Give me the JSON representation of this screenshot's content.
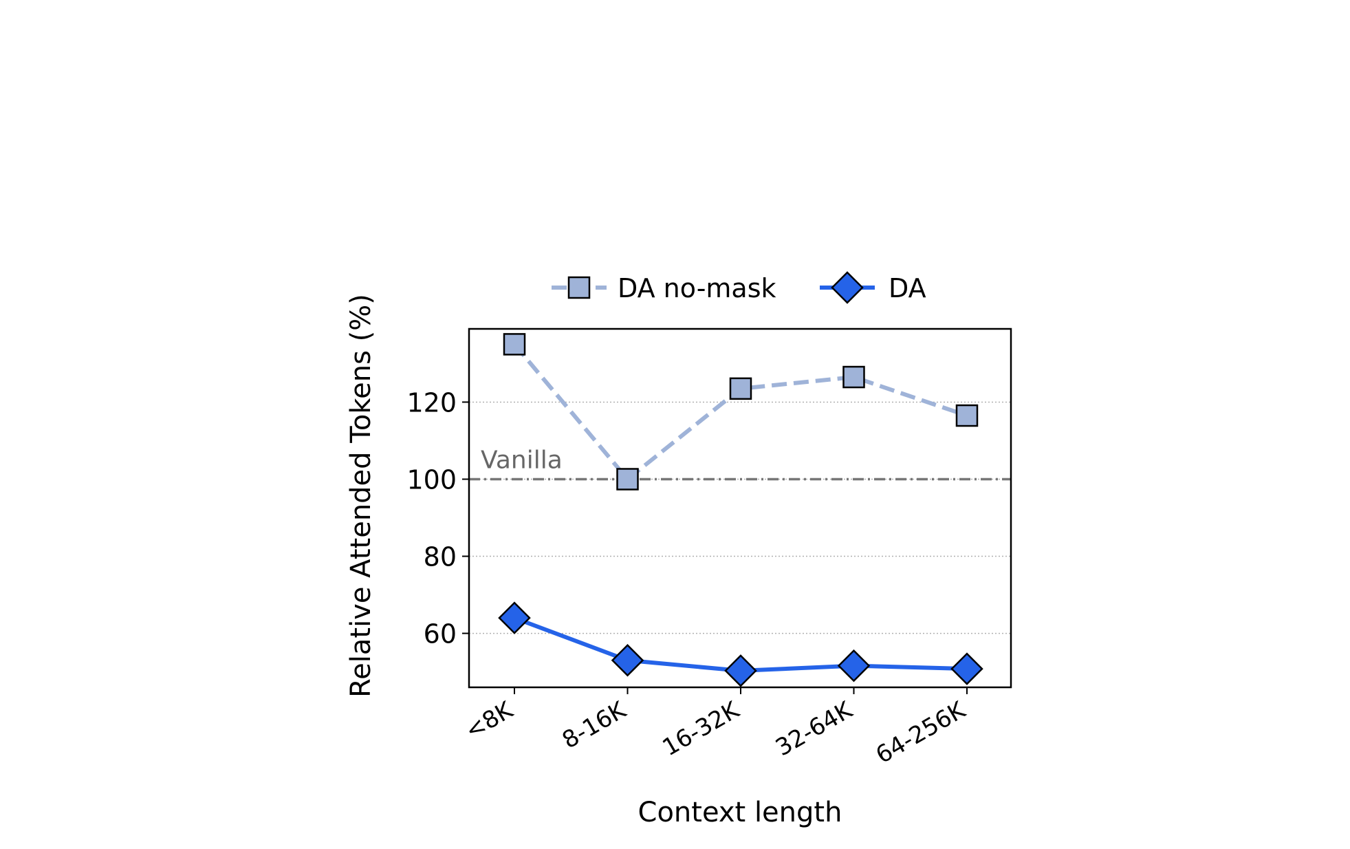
{
  "chart_data": {
    "type": "line",
    "title": "",
    "xlabel": "Context length",
    "ylabel": "Relative Attended Tokens (%)",
    "categories": [
      "<8K",
      "8-16K",
      "16-32K",
      "32-64K",
      "64-256K"
    ],
    "ylim": [
      46,
      139
    ],
    "yticks": [
      60,
      80,
      100,
      120
    ],
    "grid": "horizontal dotted",
    "legend_position": "top-center",
    "series": [
      {
        "name": "DA no-mask",
        "values": [
          135,
          100,
          123.5,
          126.5,
          116.5
        ],
        "color": "#9fb3d8",
        "line_style": "dashed",
        "marker": "square"
      },
      {
        "name": "DA",
        "values": [
          64,
          53,
          50.3,
          51.6,
          50.8
        ],
        "color": "#2563e8",
        "line_style": "solid",
        "marker": "diamond"
      }
    ],
    "reference_line": {
      "value": 100,
      "label": "Vanilla",
      "color": "#777777"
    }
  }
}
